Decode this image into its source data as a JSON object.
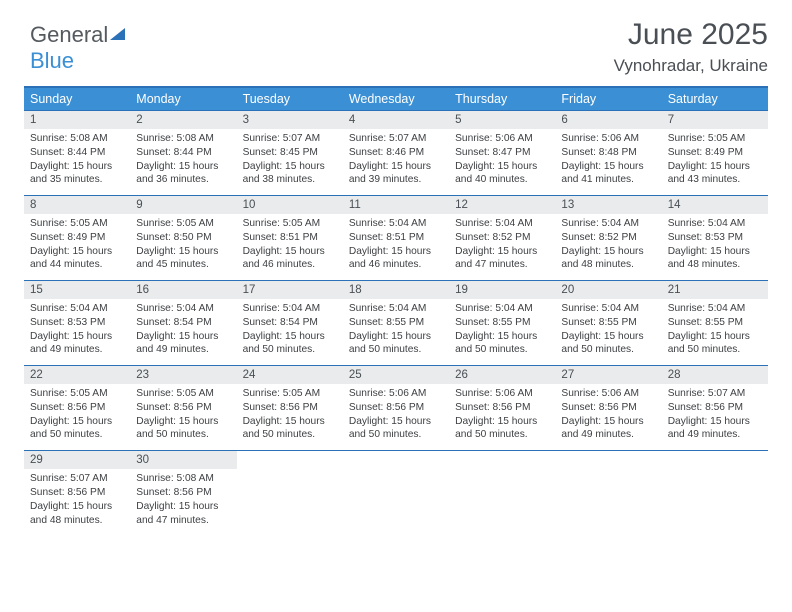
{
  "logo": {
    "text1": "General",
    "text2": "Blue"
  },
  "title": "June 2025",
  "subtitle": "Vynohradar, Ukraine",
  "header_color": "#3b8fd4",
  "header_border": "#2a71b8",
  "daynum_bg": "#e9ebec",
  "text_color": "#4a4f55",
  "weekdays": [
    "Sunday",
    "Monday",
    "Tuesday",
    "Wednesday",
    "Thursday",
    "Friday",
    "Saturday"
  ],
  "weeks": [
    [
      {
        "n": "1",
        "sr": "5:08 AM",
        "ss": "8:44 PM",
        "dl": "15 hours and 35 minutes."
      },
      {
        "n": "2",
        "sr": "5:08 AM",
        "ss": "8:44 PM",
        "dl": "15 hours and 36 minutes."
      },
      {
        "n": "3",
        "sr": "5:07 AM",
        "ss": "8:45 PM",
        "dl": "15 hours and 38 minutes."
      },
      {
        "n": "4",
        "sr": "5:07 AM",
        "ss": "8:46 PM",
        "dl": "15 hours and 39 minutes."
      },
      {
        "n": "5",
        "sr": "5:06 AM",
        "ss": "8:47 PM",
        "dl": "15 hours and 40 minutes."
      },
      {
        "n": "6",
        "sr": "5:06 AM",
        "ss": "8:48 PM",
        "dl": "15 hours and 41 minutes."
      },
      {
        "n": "7",
        "sr": "5:05 AM",
        "ss": "8:49 PM",
        "dl": "15 hours and 43 minutes."
      }
    ],
    [
      {
        "n": "8",
        "sr": "5:05 AM",
        "ss": "8:49 PM",
        "dl": "15 hours and 44 minutes."
      },
      {
        "n": "9",
        "sr": "5:05 AM",
        "ss": "8:50 PM",
        "dl": "15 hours and 45 minutes."
      },
      {
        "n": "10",
        "sr": "5:05 AM",
        "ss": "8:51 PM",
        "dl": "15 hours and 46 minutes."
      },
      {
        "n": "11",
        "sr": "5:04 AM",
        "ss": "8:51 PM",
        "dl": "15 hours and 46 minutes."
      },
      {
        "n": "12",
        "sr": "5:04 AM",
        "ss": "8:52 PM",
        "dl": "15 hours and 47 minutes."
      },
      {
        "n": "13",
        "sr": "5:04 AM",
        "ss": "8:52 PM",
        "dl": "15 hours and 48 minutes."
      },
      {
        "n": "14",
        "sr": "5:04 AM",
        "ss": "8:53 PM",
        "dl": "15 hours and 48 minutes."
      }
    ],
    [
      {
        "n": "15",
        "sr": "5:04 AM",
        "ss": "8:53 PM",
        "dl": "15 hours and 49 minutes."
      },
      {
        "n": "16",
        "sr": "5:04 AM",
        "ss": "8:54 PM",
        "dl": "15 hours and 49 minutes."
      },
      {
        "n": "17",
        "sr": "5:04 AM",
        "ss": "8:54 PM",
        "dl": "15 hours and 50 minutes."
      },
      {
        "n": "18",
        "sr": "5:04 AM",
        "ss": "8:55 PM",
        "dl": "15 hours and 50 minutes."
      },
      {
        "n": "19",
        "sr": "5:04 AM",
        "ss": "8:55 PM",
        "dl": "15 hours and 50 minutes."
      },
      {
        "n": "20",
        "sr": "5:04 AM",
        "ss": "8:55 PM",
        "dl": "15 hours and 50 minutes."
      },
      {
        "n": "21",
        "sr": "5:04 AM",
        "ss": "8:55 PM",
        "dl": "15 hours and 50 minutes."
      }
    ],
    [
      {
        "n": "22",
        "sr": "5:05 AM",
        "ss": "8:56 PM",
        "dl": "15 hours and 50 minutes."
      },
      {
        "n": "23",
        "sr": "5:05 AM",
        "ss": "8:56 PM",
        "dl": "15 hours and 50 minutes."
      },
      {
        "n": "24",
        "sr": "5:05 AM",
        "ss": "8:56 PM",
        "dl": "15 hours and 50 minutes."
      },
      {
        "n": "25",
        "sr": "5:06 AM",
        "ss": "8:56 PM",
        "dl": "15 hours and 50 minutes."
      },
      {
        "n": "26",
        "sr": "5:06 AM",
        "ss": "8:56 PM",
        "dl": "15 hours and 50 minutes."
      },
      {
        "n": "27",
        "sr": "5:06 AM",
        "ss": "8:56 PM",
        "dl": "15 hours and 49 minutes."
      },
      {
        "n": "28",
        "sr": "5:07 AM",
        "ss": "8:56 PM",
        "dl": "15 hours and 49 minutes."
      }
    ],
    [
      {
        "n": "29",
        "sr": "5:07 AM",
        "ss": "8:56 PM",
        "dl": "15 hours and 48 minutes."
      },
      {
        "n": "30",
        "sr": "5:08 AM",
        "ss": "8:56 PM",
        "dl": "15 hours and 47 minutes."
      },
      null,
      null,
      null,
      null,
      null
    ]
  ]
}
